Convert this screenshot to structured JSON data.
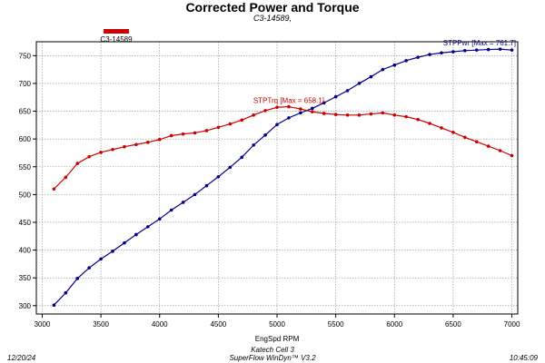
{
  "chart_data": {
    "type": "line",
    "title": "Corrected Power and Torque",
    "subtitle": "C3-14589,",
    "xlabel": "EngSpd RPM",
    "ylabel": "",
    "xlim": [
      2950,
      7050
    ],
    "ylim": [
      285,
      775
    ],
    "grid": true,
    "x_ticks": [
      3000,
      3500,
      4000,
      4500,
      5000,
      5500,
      6000,
      6500,
      7000
    ],
    "y_ticks": [
      300,
      350,
      400,
      450,
      500,
      550,
      600,
      650,
      700,
      750
    ],
    "legend": {
      "position": "top-left",
      "entries": [
        {
          "label": "C3-14589",
          "color": "#cc0000"
        }
      ]
    },
    "series": [
      {
        "name": "STPPwr",
        "color": "#00008b",
        "annotation": "STPPwr [Max = 761.7]",
        "x": [
          3100,
          3200,
          3300,
          3400,
          3500,
          3600,
          3700,
          3800,
          3900,
          4000,
          4100,
          4200,
          4300,
          4400,
          4500,
          4600,
          4700,
          4800,
          4900,
          5000,
          5100,
          5200,
          5300,
          5400,
          5500,
          5600,
          5700,
          5800,
          5900,
          6000,
          6100,
          6200,
          6300,
          6400,
          6500,
          6600,
          6700,
          6800,
          6900,
          7000
        ],
        "values": [
          301,
          323,
          349,
          368,
          384,
          398,
          413,
          428,
          442,
          456,
          472,
          486,
          500,
          516,
          532,
          549,
          567,
          589,
          607,
          626,
          638,
          647,
          655,
          665,
          676,
          687,
          700,
          712,
          725,
          733,
          741,
          747,
          752,
          755,
          757,
          759,
          760,
          761,
          761.7,
          760
        ]
      },
      {
        "name": "STPTrq",
        "color": "#cc0000",
        "annotation": "STPTrq [Max = 658.1]",
        "x": [
          3100,
          3200,
          3300,
          3400,
          3500,
          3600,
          3700,
          3800,
          3900,
          4000,
          4100,
          4200,
          4300,
          4400,
          4500,
          4600,
          4700,
          4800,
          4900,
          5000,
          5100,
          5200,
          5300,
          5400,
          5500,
          5600,
          5700,
          5800,
          5900,
          6000,
          6100,
          6200,
          6300,
          6400,
          6500,
          6600,
          6700,
          6800,
          6900,
          7000
        ],
        "values": [
          510,
          531,
          556,
          568,
          576,
          581,
          586,
          590,
          594,
          599,
          606,
          609,
          611,
          615,
          621,
          627,
          634,
          643,
          651,
          657,
          658.1,
          654,
          649,
          646,
          644,
          643,
          643,
          645,
          647,
          643,
          640,
          635,
          628,
          620,
          612,
          603,
          595,
          587,
          579,
          570
        ]
      }
    ]
  },
  "footer": {
    "date": "12/20/24",
    "time": "10:45:09",
    "cell": "Katech Cell 3",
    "software": "SuperFlow WinDyn™ V3.2"
  }
}
